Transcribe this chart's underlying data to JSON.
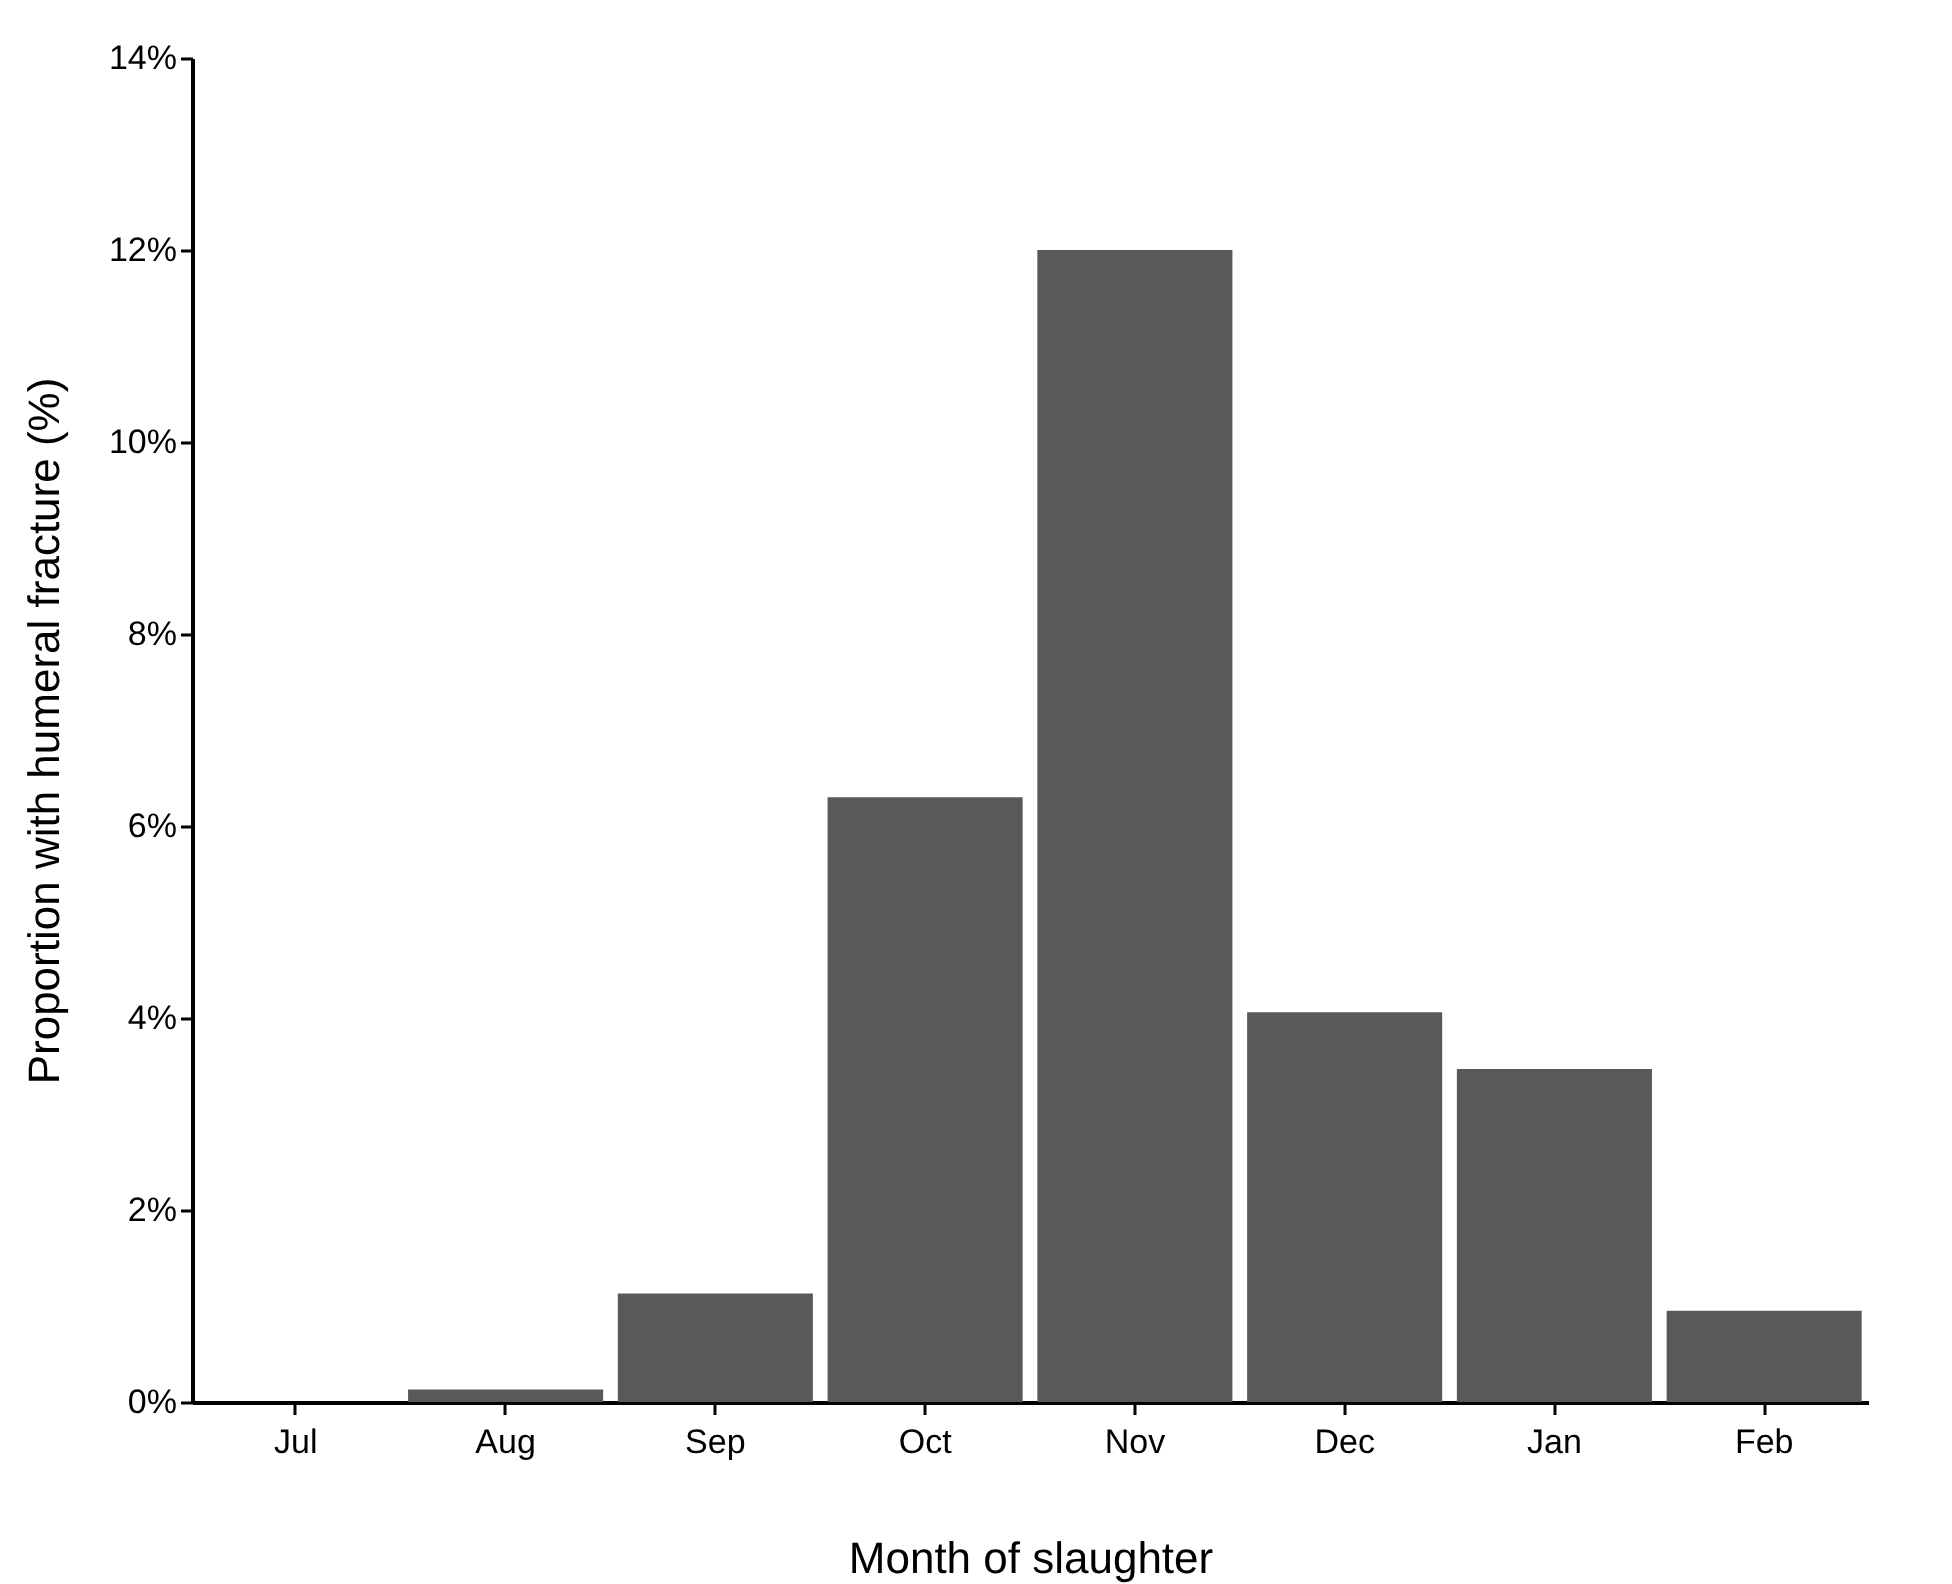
{
  "chart_data": {
    "type": "bar",
    "xlabel": "Month of slaughter",
    "ylabel": "Proportion with humeral fracture (%)",
    "categories": [
      "Jul",
      "Aug",
      "Sep",
      "Oct",
      "Nov",
      "Dec",
      "Jan",
      "Feb"
    ],
    "values": [
      0,
      0.13,
      1.13,
      6.3,
      12.0,
      4.06,
      3.47,
      0.95
    ],
    "color": "#595959",
    "ylim": [
      0,
      14
    ],
    "yticks": [
      {
        "value": 0,
        "label": "0%"
      },
      {
        "value": 2,
        "label": "2%"
      },
      {
        "value": 4,
        "label": "4%"
      },
      {
        "value": 6,
        "label": "6%"
      },
      {
        "value": 8,
        "label": "8%"
      },
      {
        "value": 10,
        "label": "10%"
      },
      {
        "value": 12,
        "label": "12%"
      },
      {
        "value": 14,
        "label": "14%"
      }
    ],
    "grid": false
  }
}
